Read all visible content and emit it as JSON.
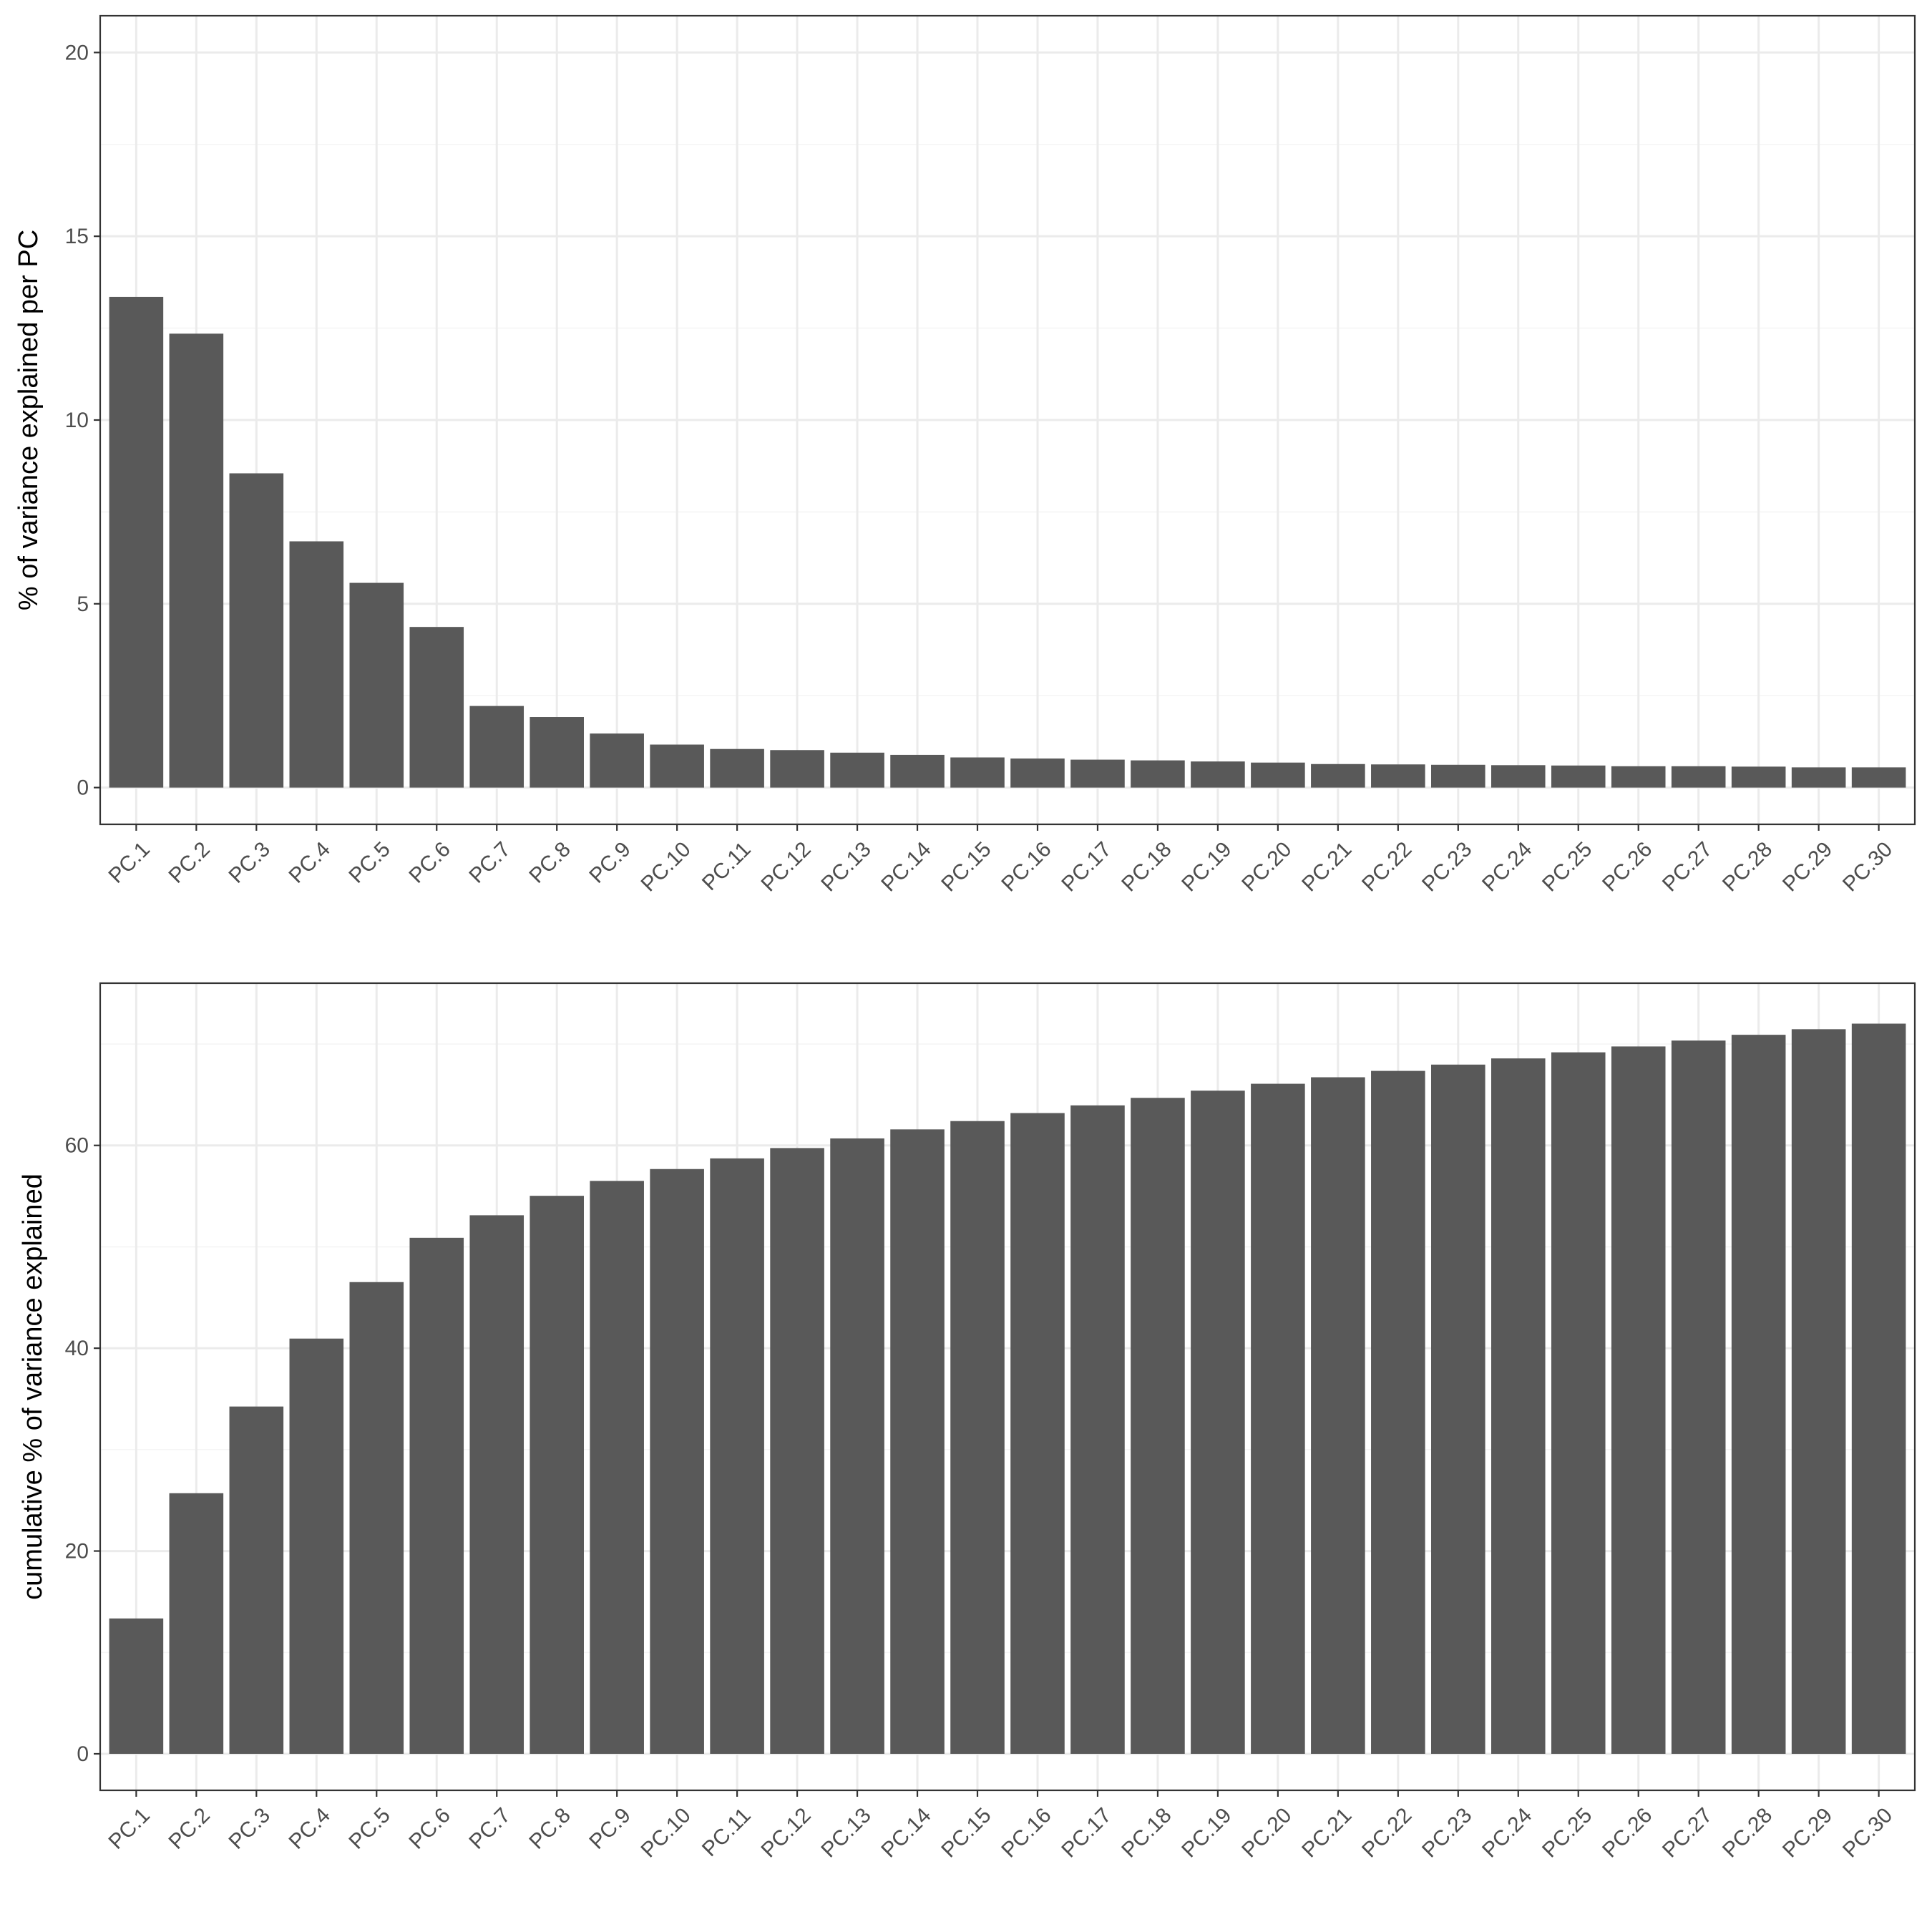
{
  "colors": {
    "bar": "#595959",
    "panel_border": "#333333",
    "grid_major": "#ebebeb",
    "grid_minor": "#f5f5f5",
    "tick_label": "#4d4d4d",
    "tick_mark": "#333333",
    "background": "#ffffff"
  },
  "chart_data": [
    {
      "type": "bar",
      "title": "",
      "xlabel": "",
      "ylabel": "% of variance explained per PC",
      "ylim": [
        -1,
        21
      ],
      "yticks": [
        0,
        5,
        10,
        15,
        20
      ],
      "grid": true,
      "categories": [
        "PC.1",
        "PC.2",
        "PC.3",
        "PC.4",
        "PC.5",
        "PC.6",
        "PC.7",
        "PC.8",
        "PC.9",
        "PC.10",
        "PC.11",
        "PC.12",
        "PC.13",
        "PC.14",
        "PC.15",
        "PC.16",
        "PC.17",
        "PC.18",
        "PC.19",
        "PC.20",
        "PC.21",
        "PC.22",
        "PC.23",
        "PC.24",
        "PC.25",
        "PC.26",
        "PC.27",
        "PC.28",
        "PC.29",
        "PC.30"
      ],
      "values": [
        13.35,
        12.35,
        8.55,
        6.7,
        5.57,
        4.37,
        2.22,
        1.92,
        1.47,
        1.17,
        1.05,
        1.02,
        0.95,
        0.89,
        0.82,
        0.79,
        0.76,
        0.74,
        0.71,
        0.68,
        0.64,
        0.63,
        0.62,
        0.61,
        0.6,
        0.58,
        0.58,
        0.57,
        0.55,
        0.55
      ]
    },
    {
      "type": "bar",
      "title": "",
      "xlabel": "",
      "ylabel": "cumulative % of variance explained",
      "ylim": [
        -3.6,
        76
      ],
      "yticks": [
        0,
        20,
        40,
        60
      ],
      "grid": true,
      "categories": [
        "PC.1",
        "PC.2",
        "PC.3",
        "PC.4",
        "PC.5",
        "PC.6",
        "PC.7",
        "PC.8",
        "PC.9",
        "PC.10",
        "PC.11",
        "PC.12",
        "PC.13",
        "PC.14",
        "PC.15",
        "PC.16",
        "PC.17",
        "PC.18",
        "PC.19",
        "PC.20",
        "PC.21",
        "PC.22",
        "PC.23",
        "PC.24",
        "PC.25",
        "PC.26",
        "PC.27",
        "PC.28",
        "PC.29",
        "PC.30"
      ],
      "values": [
        13.35,
        25.7,
        34.25,
        40.95,
        46.52,
        50.89,
        53.11,
        55.03,
        56.5,
        57.67,
        58.72,
        59.74,
        60.69,
        61.58,
        62.4,
        63.19,
        63.95,
        64.69,
        65.4,
        66.08,
        66.72,
        67.35,
        67.97,
        68.58,
        69.18,
        69.76,
        70.34,
        70.91,
        71.46,
        72.01
      ]
    }
  ]
}
